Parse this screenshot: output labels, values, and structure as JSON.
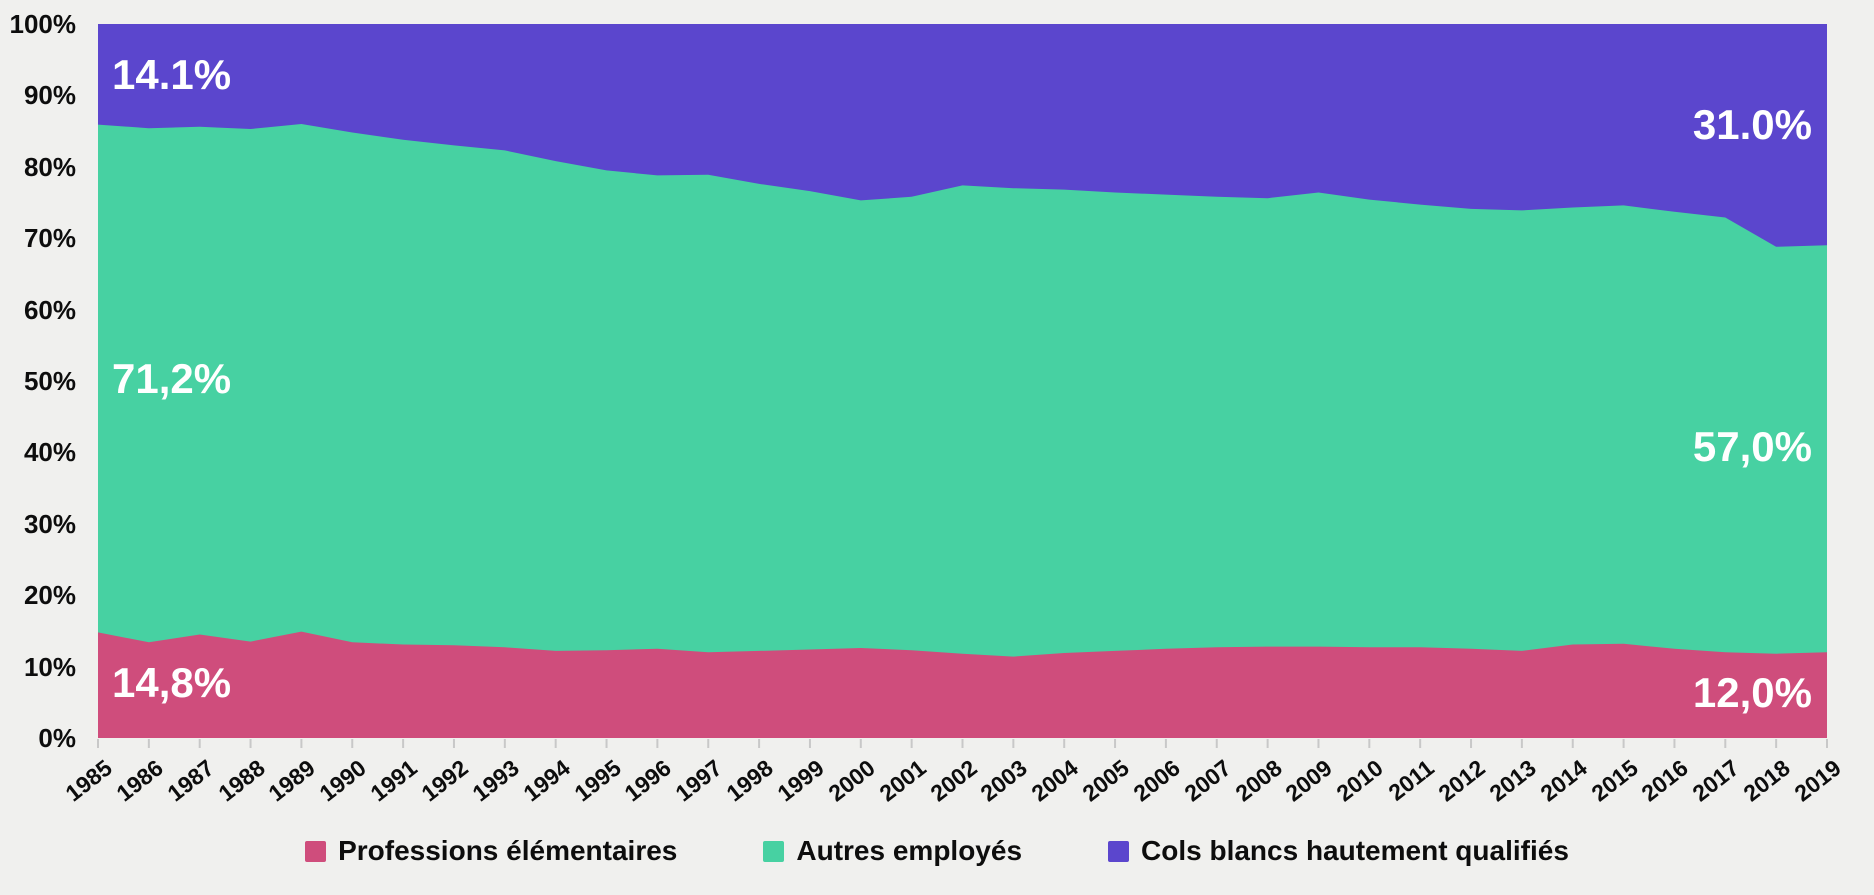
{
  "chart_data": {
    "type": "area",
    "variant": "stacked-percent",
    "title": "",
    "xlabel": "",
    "ylabel": "",
    "ylim": [
      0,
      100
    ],
    "grid": false,
    "legend_position": "bottom",
    "y_tick_labels": [
      "0%",
      "10%",
      "20%",
      "30%",
      "40%",
      "50%",
      "60%",
      "70%",
      "80%",
      "90%",
      "100%"
    ],
    "x": [
      1985,
      1986,
      1987,
      1988,
      1989,
      1990,
      1991,
      1992,
      1993,
      1994,
      1995,
      1996,
      1997,
      1998,
      1999,
      2000,
      2001,
      2002,
      2003,
      2004,
      2005,
      2006,
      2007,
      2008,
      2009,
      2010,
      2011,
      2012,
      2013,
      2014,
      2015,
      2016,
      2017,
      2018,
      2019
    ],
    "series": [
      {
        "name": "Professions élémentaires",
        "color": "#cf4d7c",
        "values": [
          14.8,
          13.4,
          14.5,
          13.5,
          14.9,
          13.4,
          13.1,
          13.0,
          12.7,
          12.2,
          12.3,
          12.5,
          12.0,
          12.2,
          12.4,
          12.6,
          12.3,
          11.8,
          11.4,
          11.9,
          12.2,
          12.5,
          12.7,
          12.8,
          12.8,
          12.7,
          12.7,
          12.5,
          12.2,
          13.1,
          13.2,
          12.5,
          12.0,
          11.8,
          12.0
        ]
      },
      {
        "name": "Autres employés",
        "color": "#47d1a2",
        "values": [
          71.2,
          72.0,
          71.1,
          71.8,
          71.1,
          71.4,
          70.7,
          70.0,
          69.6,
          68.6,
          67.2,
          66.3,
          66.9,
          65.4,
          64.2,
          62.7,
          63.5,
          65.6,
          65.6,
          64.9,
          64.2,
          63.6,
          63.1,
          62.8,
          63.6,
          62.7,
          62.0,
          61.6,
          61.7,
          61.2,
          61.4,
          61.2,
          60.9,
          57.0,
          57.0
        ]
      },
      {
        "name": "Cols blancs hautement qualifiés",
        "color": "#5b46cd",
        "values": [
          14.1,
          14.6,
          14.4,
          14.7,
          14.0,
          15.2,
          16.2,
          17.0,
          17.7,
          19.2,
          20.5,
          21.2,
          21.1,
          22.4,
          23.4,
          24.7,
          24.2,
          22.6,
          23.0,
          23.2,
          23.6,
          23.9,
          24.2,
          24.4,
          23.6,
          24.6,
          25.3,
          25.9,
          26.1,
          25.7,
          25.4,
          26.3,
          27.1,
          31.2,
          31.0
        ]
      }
    ],
    "annotations": [
      {
        "text": "14.1%",
        "series": "Cols blancs hautement qualifiés",
        "position": "top-left"
      },
      {
        "text": "71,2%",
        "series": "Autres employés",
        "position": "mid-left"
      },
      {
        "text": "14,8%",
        "series": "Professions élémentaires",
        "position": "bot-left"
      },
      {
        "text": "31.0%",
        "series": "Cols blancs hautement qualifiés",
        "position": "top-right"
      },
      {
        "text": "57,0%",
        "series": "Autres employés",
        "position": "mid-right"
      },
      {
        "text": "12,0%",
        "series": "Professions élémentaires",
        "position": "bot-right"
      }
    ],
    "colors": {
      "background": "#f0f0ee",
      "axis_text": "#0d0d0d",
      "tick_mark": "#c8c8c8",
      "annotation_text": "#ffffff"
    }
  }
}
